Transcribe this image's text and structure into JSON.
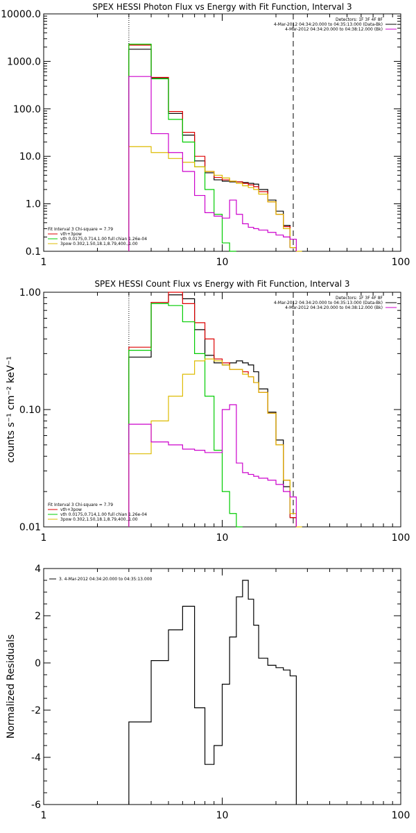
{
  "chart_data": [
    {
      "type": "line",
      "title": "SPEX HESSI Photon Flux vs Energy with Fit Function, Interval 3",
      "xlabel": "",
      "ylabel": "",
      "xscale": "log",
      "yscale": "log",
      "xlim": [
        1,
        100
      ],
      "ylim": [
        0.1,
        10000
      ],
      "x_tick_labels": [
        "1",
        "10",
        "100"
      ],
      "y_tick_labels": [
        "0.1",
        "1.0",
        "10.0",
        "100.0",
        "1000.0",
        "10000.0"
      ],
      "y_tick_values": [
        0.1,
        1,
        10,
        100,
        1000,
        10000
      ],
      "vlines": [
        {
          "x": 3,
          "style": "dotted"
        },
        {
          "x": 25,
          "style": "dashed"
        }
      ],
      "legend_topright": [
        {
          "text": "Detectors: 1F 3F 4F 8F",
          "color": "#000000"
        },
        {
          "text": "4-Mar-2012 04:34:20.000 to 04:35:13.000 (Data-Bk)",
          "color": "#000000"
        },
        {
          "text": "4-Mar-2012 04:34:20.000 to 04:38:12.000 (Bk)",
          "color": "#cc00cc"
        }
      ],
      "legend_bottomleft": [
        {
          "text": "Fit Interval 3   Chi-square = 7.79",
          "color": "#000000"
        },
        {
          "text": "vth+3pow",
          "color": "#dd0000"
        },
        {
          "text": "vth 0.0175,0.714,1.00  full chian 1.26e-04",
          "color": "#00cc00"
        },
        {
          "text": "3pow 0.302,1.50,18.1,8.79,400.,1.00",
          "color": "#ddbb00"
        }
      ],
      "bin_edges": [
        3,
        4,
        5,
        6,
        7,
        8,
        9,
        10,
        11,
        12,
        13,
        14,
        15,
        16,
        18,
        20,
        22,
        24,
        26,
        28,
        30
      ],
      "series": [
        {
          "name": "Data-Bk",
          "color": "#000000",
          "values": [
            1800,
            450,
            80,
            28,
            8,
            4.5,
            3.2,
            3.0,
            2.9,
            2.9,
            2.8,
            2.7,
            2.6,
            2.0,
            1.2,
            0.7,
            0.35,
            0.12,
            null,
            null
          ]
        },
        {
          "name": "vth+3pow",
          "color": "#dd0000",
          "values": [
            2200,
            460,
            88,
            32,
            10,
            4.8,
            3.6,
            3.2,
            3.0,
            2.9,
            2.7,
            2.5,
            2.3,
            1.8,
            1.1,
            0.6,
            0.33,
            0.12,
            null,
            null
          ]
        },
        {
          "name": "vth",
          "color": "#00cc00",
          "values": [
            2300,
            430,
            60,
            20,
            6.0,
            2.0,
            0.6,
            0.15,
            0.1,
            null,
            null,
            null,
            null,
            null,
            null,
            null,
            null,
            null,
            null,
            null
          ]
        },
        {
          "name": "3pow",
          "color": "#ddbb00",
          "values": [
            16,
            12,
            9,
            7.5,
            6.0,
            4.8,
            4.0,
            3.5,
            3.0,
            2.7,
            2.4,
            2.2,
            2.0,
            1.6,
            1.1,
            0.6,
            0.3,
            0.12,
            0.1,
            null
          ]
        },
        {
          "name": "Bk",
          "color": "#cc00cc",
          "values": [
            480,
            30,
            12,
            4.8,
            1.5,
            0.65,
            0.55,
            0.5,
            1.2,
            0.6,
            0.38,
            0.32,
            0.3,
            0.28,
            0.25,
            0.22,
            0.2,
            0.18,
            null,
            null
          ]
        }
      ]
    },
    {
      "type": "line",
      "title": "SPEX HESSI Count Flux vs Energy with Fit Function, Interval 3",
      "xlabel": "",
      "ylabel": "counts s⁻¹ cm⁻² keV⁻¹",
      "xscale": "log",
      "yscale": "log",
      "xlim": [
        1,
        100
      ],
      "ylim": [
        0.01,
        1.0
      ],
      "x_tick_labels": [
        "1",
        "10",
        "100"
      ],
      "y_tick_labels": [
        "0.01",
        "0.10",
        "1.00"
      ],
      "y_tick_values": [
        0.01,
        0.1,
        1.0
      ],
      "vlines": [
        {
          "x": 3,
          "style": "dotted"
        },
        {
          "x": 25,
          "style": "dashed"
        }
      ],
      "legend_topright": [
        {
          "text": "Detectors: 1F 3F 4F 8F",
          "color": "#000000"
        },
        {
          "text": "4-Mar-2012 04:34:20.000 to 04:35:13.000 (Data-Bk)",
          "color": "#000000"
        },
        {
          "text": "4-Mar-2012 04:34:20.000 to 04:38:12.000 (Bk)",
          "color": "#cc00cc"
        }
      ],
      "legend_bottomleft": [
        {
          "text": "Fit Interval 3   Chi-square = 7.79",
          "color": "#000000"
        },
        {
          "text": "vth+3pow",
          "color": "#dd0000"
        },
        {
          "text": "vth 0.0175,0.714,1.00  full chian 1.26e-04",
          "color": "#00cc00"
        },
        {
          "text": "3pow 0.302,1.50,18.1,8.79,400.,1.00",
          "color": "#ddbb00"
        }
      ],
      "bin_edges": [
        3,
        4,
        5,
        6,
        7,
        8,
        9,
        10,
        11,
        12,
        13,
        14,
        15,
        16,
        18,
        20,
        22,
        24,
        26,
        28,
        30
      ],
      "series": [
        {
          "name": "Data-Bk",
          "color": "#000000",
          "values": [
            0.28,
            0.82,
            0.95,
            0.88,
            0.48,
            0.29,
            0.25,
            0.24,
            0.25,
            0.26,
            0.25,
            0.24,
            0.21,
            0.15,
            0.095,
            0.055,
            0.022,
            0.012,
            null,
            null
          ]
        },
        {
          "name": "vth+3pow",
          "color": "#dd0000",
          "values": [
            0.34,
            0.82,
            1.0,
            0.8,
            0.55,
            0.4,
            0.27,
            0.25,
            0.22,
            0.22,
            0.21,
            0.19,
            0.17,
            0.14,
            0.093,
            0.05,
            0.025,
            0.012,
            null,
            null
          ]
        },
        {
          "name": "vth",
          "color": "#00cc00",
          "values": [
            0.32,
            0.8,
            0.77,
            0.56,
            0.3,
            0.13,
            0.045,
            0.02,
            0.013,
            0.01,
            null,
            null,
            null,
            null,
            null,
            null,
            null,
            null,
            null,
            null
          ]
        },
        {
          "name": "3pow",
          "color": "#ddbb00",
          "values": [
            0.042,
            0.08,
            0.13,
            0.2,
            0.26,
            0.27,
            0.26,
            0.24,
            0.22,
            0.22,
            0.2,
            0.19,
            0.17,
            0.14,
            0.093,
            0.05,
            0.025,
            0.013,
            0.01,
            null
          ]
        },
        {
          "name": "Bk",
          "color": "#cc00cc",
          "values": [
            0.075,
            0.053,
            0.05,
            0.046,
            0.045,
            0.043,
            0.043,
            0.1,
            0.11,
            0.035,
            0.029,
            0.028,
            0.027,
            0.026,
            0.025,
            0.023,
            0.02,
            0.018,
            null,
            null
          ]
        }
      ]
    },
    {
      "type": "line",
      "title": "",
      "xlabel": "",
      "ylabel": "Normalized Residuals",
      "xscale": "log",
      "yscale": "linear",
      "xlim": [
        1,
        100
      ],
      "ylim": [
        -6,
        4
      ],
      "x_tick_labels": [
        "1",
        "10",
        "100"
      ],
      "y_tick_labels": [
        "-6",
        "-4",
        "-2",
        "0",
        "2",
        "4"
      ],
      "y_tick_values": [
        -6,
        -4,
        -2,
        0,
        2,
        4
      ],
      "legend_topleft": [
        {
          "text": "3.  4-Mar-2012 04:34:20.000 to 04:35:13.000",
          "color": "#000000"
        }
      ],
      "bin_edges": [
        3,
        4,
        5,
        6,
        7,
        8,
        9,
        10,
        11,
        12,
        13,
        14,
        15,
        16,
        18,
        20,
        22,
        24,
        26
      ],
      "series": [
        {
          "name": "",
          "color": "#000000",
          "values": [
            -2.5,
            0.1,
            1.4,
            2.4,
            -1.9,
            -4.3,
            -3.5,
            -0.9,
            1.1,
            2.8,
            3.5,
            2.7,
            1.6,
            0.2,
            -0.1,
            -0.2,
            -0.3,
            -0.55
          ]
        }
      ]
    }
  ]
}
